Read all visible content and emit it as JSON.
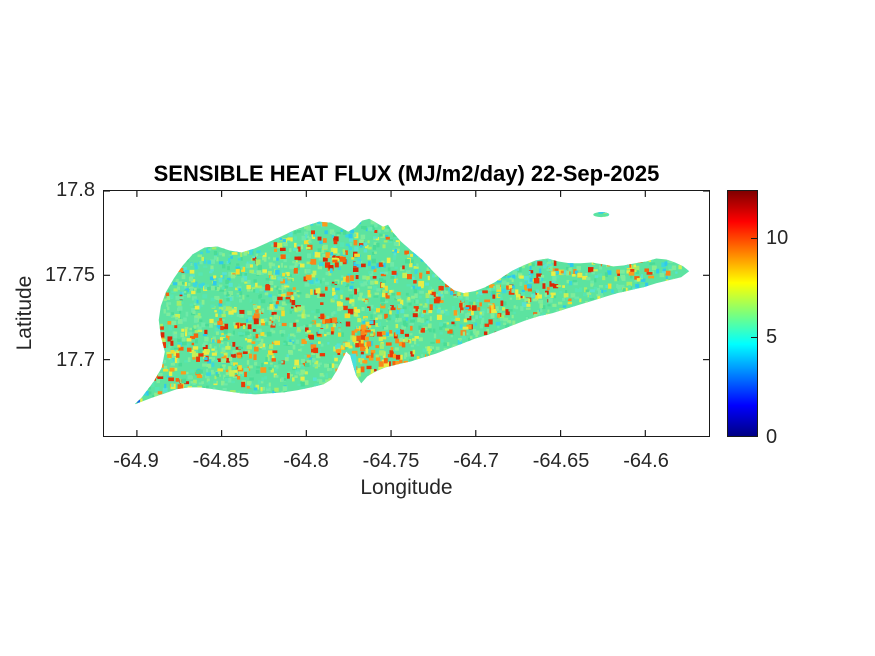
{
  "chart_data": {
    "type": "heatmap",
    "title": "SENSIBLE HEAT FLUX (MJ/m2/day) 22-Sep-2025",
    "xlabel": "Longitude",
    "ylabel": "Latitude",
    "xlim": [
      -64.9194,
      -64.5624
    ],
    "ylim": [
      17.6547,
      17.8
    ],
    "x_ticks": [
      -64.9,
      -64.85,
      -64.8,
      -64.75,
      -64.7,
      -64.65,
      -64.6
    ],
    "x_tick_labels": [
      "-64.9",
      "-64.85",
      "-64.8",
      "-64.75",
      "-64.7",
      "-64.65",
      "-64.6"
    ],
    "y_ticks": [
      17.8,
      17.75,
      17.7
    ],
    "y_tick_labels": [
      "17.8",
      "17.75",
      "17.7"
    ],
    "grid": false,
    "axis_color": "#1a1a1a",
    "colorbar": {
      "position": "right",
      "min": 0,
      "max": 12.4,
      "ticks": [
        0,
        5,
        10
      ],
      "tick_labels": [
        "0",
        "5",
        "10"
      ],
      "colormap": "jet",
      "colormap_stops": [
        {
          "pos": 0.0,
          "color": "#000084"
        },
        {
          "pos": 0.125,
          "color": "#0000ff"
        },
        {
          "pos": 0.375,
          "color": "#00ffff"
        },
        {
          "pos": 0.5,
          "color": "#7dff7a"
        },
        {
          "pos": 0.625,
          "color": "#ffff00"
        },
        {
          "pos": 0.875,
          "color": "#ff0000"
        },
        {
          "pos": 1.0,
          "color": "#800000"
        }
      ]
    },
    "island": {
      "outline_lonlat": [
        [
          -64.9012,
          17.6735
        ],
        [
          -64.8971,
          17.6776
        ],
        [
          -64.89,
          17.6871
        ],
        [
          -64.8853,
          17.6953
        ],
        [
          -64.8835,
          17.7047
        ],
        [
          -64.8859,
          17.7141
        ],
        [
          -64.8871,
          17.7235
        ],
        [
          -64.8859,
          17.7318
        ],
        [
          -64.8829,
          17.74
        ],
        [
          -64.8782,
          17.7482
        ],
        [
          -64.8729,
          17.7559
        ],
        [
          -64.8671,
          17.7624
        ],
        [
          -64.86,
          17.7665
        ],
        [
          -64.8524,
          17.7671
        ],
        [
          -64.8453,
          17.7647
        ],
        [
          -64.8382,
          17.7635
        ],
        [
          -64.8306,
          17.7659
        ],
        [
          -64.8229,
          17.7694
        ],
        [
          -64.8153,
          17.7729
        ],
        [
          -64.8076,
          17.7765
        ],
        [
          -64.8,
          17.7794
        ],
        [
          -64.7924,
          17.7818
        ],
        [
          -64.7853,
          17.7812
        ],
        [
          -64.7794,
          17.7782
        ],
        [
          -64.7753,
          17.7759
        ],
        [
          -64.7712,
          17.7782
        ],
        [
          -64.7671,
          17.7824
        ],
        [
          -64.7629,
          17.7835
        ],
        [
          -64.7588,
          17.7812
        ],
        [
          -64.7547,
          17.7788
        ],
        [
          -64.7518,
          17.78
        ],
        [
          -64.7488,
          17.7753
        ],
        [
          -64.7441,
          17.77
        ],
        [
          -64.7382,
          17.7647
        ],
        [
          -64.7318,
          17.7594
        ],
        [
          -64.7247,
          17.7518
        ],
        [
          -64.7182,
          17.7453
        ],
        [
          -64.7129,
          17.7412
        ],
        [
          -64.7071,
          17.7394
        ],
        [
          -64.7006,
          17.7406
        ],
        [
          -64.6947,
          17.7429
        ],
        [
          -64.6888,
          17.7459
        ],
        [
          -64.6835,
          17.7494
        ],
        [
          -64.6782,
          17.7529
        ],
        [
          -64.6718,
          17.7559
        ],
        [
          -64.6647,
          17.7588
        ],
        [
          -64.6576,
          17.76
        ],
        [
          -64.6512,
          17.7582
        ],
        [
          -64.6447,
          17.7571
        ],
        [
          -64.6382,
          17.7571
        ],
        [
          -64.6318,
          17.7576
        ],
        [
          -64.6253,
          17.7565
        ],
        [
          -64.6188,
          17.7553
        ],
        [
          -64.6124,
          17.7559
        ],
        [
          -64.6059,
          17.7571
        ],
        [
          -64.5994,
          17.7582
        ],
        [
          -64.5935,
          17.76
        ],
        [
          -64.5876,
          17.7594
        ],
        [
          -64.5824,
          17.7576
        ],
        [
          -64.5776,
          17.7553
        ],
        [
          -64.5741,
          17.7524
        ],
        [
          -64.5788,
          17.7488
        ],
        [
          -64.5859,
          17.7471
        ],
        [
          -64.5935,
          17.7453
        ],
        [
          -64.6012,
          17.7429
        ],
        [
          -64.6088,
          17.7412
        ],
        [
          -64.6165,
          17.7394
        ],
        [
          -64.6241,
          17.7371
        ],
        [
          -64.6318,
          17.7347
        ],
        [
          -64.6394,
          17.7324
        ],
        [
          -64.6471,
          17.73
        ],
        [
          -64.6547,
          17.7276
        ],
        [
          -64.6624,
          17.7259
        ],
        [
          -64.67,
          17.7235
        ],
        [
          -64.6776,
          17.7206
        ],
        [
          -64.6853,
          17.7176
        ],
        [
          -64.6929,
          17.7147
        ],
        [
          -64.7006,
          17.7124
        ],
        [
          -64.7082,
          17.7094
        ],
        [
          -64.7159,
          17.7065
        ],
        [
          -64.7235,
          17.7035
        ],
        [
          -64.7312,
          17.7012
        ],
        [
          -64.7388,
          17.6988
        ],
        [
          -64.7465,
          17.6971
        ],
        [
          -64.7535,
          17.6953
        ],
        [
          -64.7594,
          17.6929
        ],
        [
          -64.7641,
          17.69
        ],
        [
          -64.7676,
          17.6859
        ],
        [
          -64.7706,
          17.6906
        ],
        [
          -64.7724,
          17.6965
        ],
        [
          -64.7741,
          17.7024
        ],
        [
          -64.7765,
          17.7047
        ],
        [
          -64.7794,
          17.6988
        ],
        [
          -64.7824,
          17.6929
        ],
        [
          -64.7853,
          17.6882
        ],
        [
          -64.79,
          17.6853
        ],
        [
          -64.7971,
          17.6835
        ],
        [
          -64.8053,
          17.6818
        ],
        [
          -64.8135,
          17.6806
        ],
        [
          -64.8218,
          17.68
        ],
        [
          -64.83,
          17.6794
        ],
        [
          -64.8382,
          17.68
        ],
        [
          -64.8465,
          17.6812
        ],
        [
          -64.8547,
          17.6824
        ],
        [
          -64.8624,
          17.6835
        ],
        [
          -64.8694,
          17.6835
        ],
        [
          -64.8765,
          17.6824
        ],
        [
          -64.8835,
          17.68
        ],
        [
          -64.8906,
          17.6776
        ],
        [
          -64.8965,
          17.6753
        ]
      ],
      "islets": [
        {
          "name": "small-cay",
          "lon": -64.626,
          "lat": 17.786,
          "rx_deg": 0.0047,
          "ry_deg": 0.0015
        }
      ],
      "features": [
        {
          "name": "lagoon-spit-cool-strip",
          "color": "#4ADFDC",
          "lon0": -64.774,
          "lon1": -64.7705,
          "lat0": 17.6865,
          "lat1": 17.7035
        },
        {
          "name": "west-tip-low-flux-dot",
          "color": "#1565E8",
          "lon0": -64.9,
          "lon1": -64.8982,
          "lat0": 17.6745,
          "lat1": 17.6762
        }
      ]
    },
    "texture": {
      "seed": 987123,
      "attempts": 6500,
      "base_color": "#5CE3A0",
      "green_variants": [
        "#4ADC96",
        "#6FE9A8",
        "#7EEC9B",
        "#57E6B2",
        "#8BEE8F"
      ],
      "cyan_colors": [
        "#3BD7DF",
        "#2EC9EC",
        "#57E3D0"
      ],
      "mottle_colors": [
        "#A5ED68",
        "#C9F055",
        "#E8F046"
      ],
      "warm_colors": {
        "red": [
          "#E93A08",
          "#D82706"
        ],
        "orange": [
          "#F8861B",
          "#F4640D",
          "#FA9C1C"
        ],
        "yellow": [
          "#F3DC2E",
          "#E9ED45"
        ]
      },
      "warm_base": 0.055,
      "cyan_base": 0.1,
      "cyan_north_lat": 17.745,
      "cyan_north_boost": 0.14,
      "hotspots": [
        {
          "lon": -64.785,
          "lat": 17.735,
          "r": 0.035,
          "s": 0.45
        },
        {
          "lon": -64.765,
          "lat": 17.705,
          "r": 0.024,
          "s": 0.9
        },
        {
          "lon": -64.747,
          "lat": 17.703,
          "r": 0.018,
          "s": 0.5
        },
        {
          "lon": -64.871,
          "lat": 17.7,
          "r": 0.024,
          "s": 0.5
        },
        {
          "lon": -64.697,
          "lat": 17.735,
          "r": 0.032,
          "s": 0.45
        },
        {
          "lon": -64.65,
          "lat": 17.75,
          "r": 0.024,
          "s": 0.35
        },
        {
          "lon": -64.832,
          "lat": 17.715,
          "r": 0.029,
          "s": 0.4
        },
        {
          "lon": -64.612,
          "lat": 17.754,
          "r": 0.018,
          "s": 0.4
        },
        {
          "lon": -64.803,
          "lat": 17.764,
          "r": 0.021,
          "s": 0.3
        },
        {
          "lon": -64.736,
          "lat": 17.744,
          "r": 0.024,
          "s": 0.35
        }
      ],
      "cyan_spots": [
        {
          "lon": -64.785,
          "lat": 17.768,
          "r": 0.026,
          "s": 0.3
        },
        {
          "lon": -64.726,
          "lat": 17.762,
          "r": 0.024,
          "s": 0.3
        },
        {
          "lon": -64.859,
          "lat": 17.756,
          "r": 0.021,
          "s": 0.25
        },
        {
          "lon": -64.674,
          "lat": 17.741,
          "r": 0.021,
          "s": 0.2
        }
      ]
    }
  }
}
